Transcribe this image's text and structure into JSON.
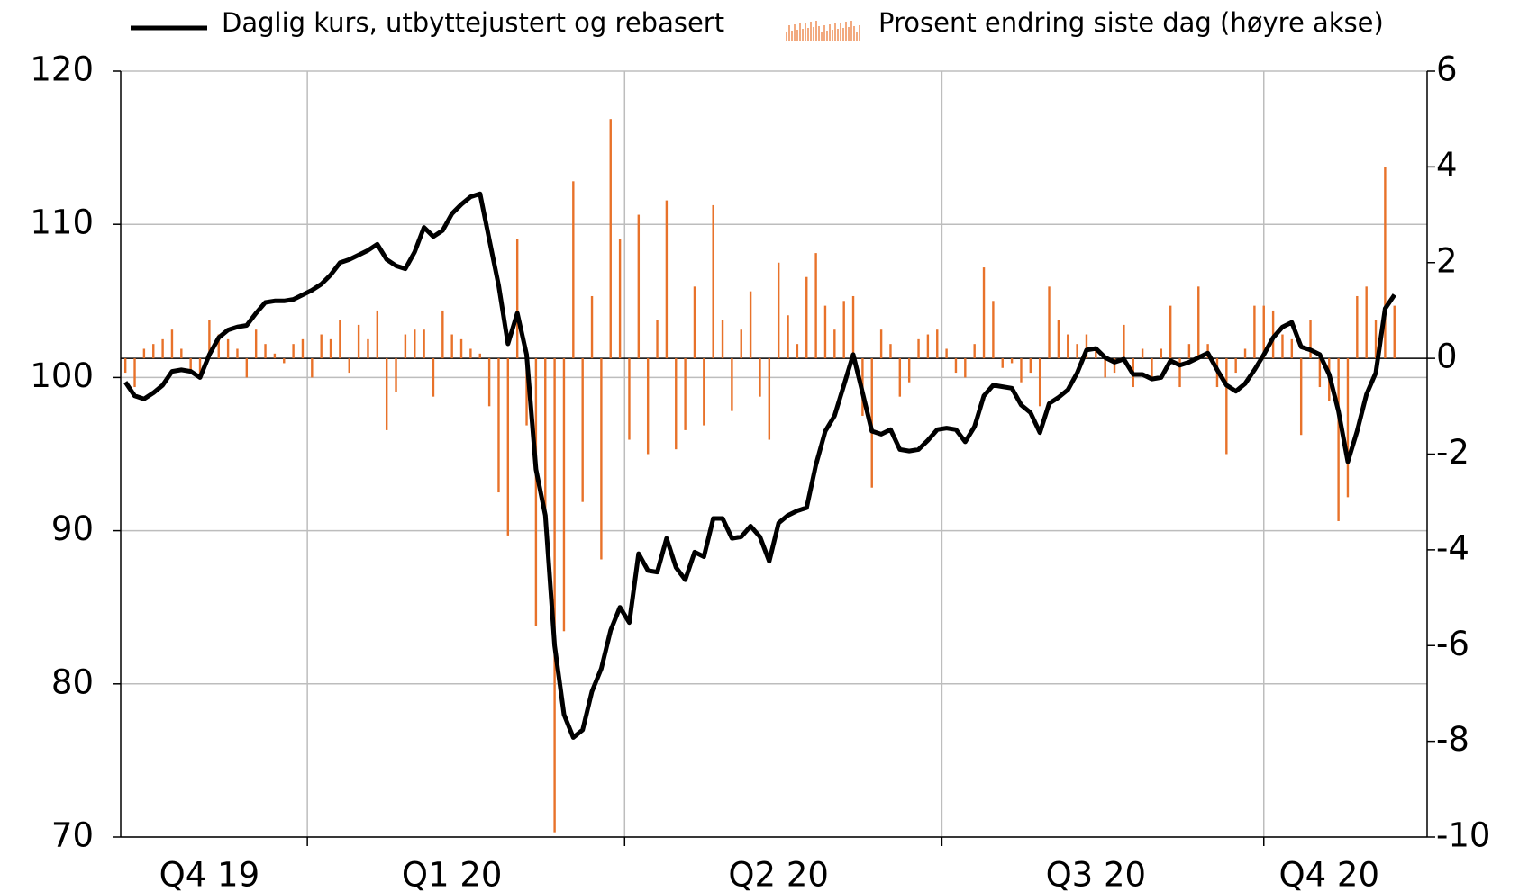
{
  "chart_data": {
    "type": "line-bar",
    "categories": [
      null,
      null,
      null,
      null,
      null,
      null,
      null,
      null,
      null,
      "Q4 19",
      null,
      null,
      null,
      null,
      null,
      null,
      null,
      null,
      null,
      null,
      null,
      null,
      null,
      null,
      null,
      null,
      null,
      null,
      null,
      null,
      null,
      null,
      null,
      null,
      null,
      "Q1 20",
      null,
      null,
      null,
      null,
      null,
      null,
      null,
      null,
      null,
      null,
      null,
      null,
      null,
      null,
      null,
      null,
      null,
      null,
      null,
      null,
      null,
      null,
      null,
      null,
      null,
      null,
      null,
      null,
      null,
      null,
      null,
      null,
      null,
      null,
      "Q2 20",
      null,
      null,
      null,
      null,
      null,
      null,
      null,
      null,
      null,
      null,
      null,
      null,
      null,
      null,
      null,
      null,
      null,
      null,
      null,
      null,
      null,
      null,
      null,
      null,
      null,
      null,
      null,
      null,
      null,
      null,
      null,
      null,
      null,
      "Q3 20",
      null,
      null,
      null,
      null,
      null,
      null,
      null,
      null,
      null,
      null,
      null,
      null,
      null,
      null,
      null,
      null,
      null,
      null,
      null,
      null,
      null,
      null,
      null,
      null,
      "Q4 20",
      null,
      null,
      null,
      null,
      null,
      null,
      null
    ],
    "xlim": [
      -0.5,
      139.5
    ],
    "xticks": [
      19.5,
      53.5,
      87.5,
      122
    ],
    "series": [
      {
        "name": "Daglig kurs, utbyttejustert og rebasert",
        "color": "#000000",
        "axis": "y",
        "values": [
          99.7,
          98.8,
          98.6,
          99.0,
          99.5,
          100.4,
          100.5,
          100.4,
          100.0,
          101.5,
          102.6,
          103.1,
          103.3,
          103.4,
          104.2,
          104.9,
          105.0,
          105.0,
          105.1,
          105.4,
          105.7,
          106.1,
          106.7,
          107.5,
          107.7,
          108.0,
          108.3,
          108.7,
          107.7,
          107.3,
          107.1,
          108.2,
          109.8,
          109.2,
          109.6,
          110.7,
          111.3,
          111.8,
          112.0,
          109.0,
          106.0,
          102.2,
          104.2,
          101.5,
          94.0,
          91.0,
          82.5,
          78.0,
          76.5,
          77.0,
          79.5,
          81.0,
          83.5,
          85.0,
          84.0,
          88.5,
          87.4,
          87.3,
          89.5,
          87.6,
          86.8,
          88.6,
          88.3,
          90.8,
          90.8,
          89.5,
          89.6,
          90.3,
          89.6,
          88.0,
          90.5,
          91.0,
          91.3,
          91.5,
          94.3,
          96.5,
          97.5,
          99.5,
          101.5,
          99.0,
          96.5,
          96.3,
          96.6,
          95.3,
          95.2,
          95.3,
          95.9,
          96.6,
          96.7,
          96.6,
          95.8,
          96.8,
          98.8,
          99.5,
          99.4,
          99.3,
          98.2,
          97.7,
          96.4,
          98.3,
          98.7,
          99.2,
          100.3,
          101.8,
          101.9,
          101.3,
          101.0,
          101.2,
          100.2,
          100.2,
          99.9,
          100.0,
          101.1,
          100.8,
          101.0,
          101.3,
          101.6,
          100.5,
          99.5,
          99.1,
          99.6,
          100.5,
          101.5,
          102.6,
          103.3,
          103.6,
          102.0,
          101.8,
          101.5,
          100.2,
          97.8,
          94.5,
          96.5,
          98.9,
          100.3,
          104.5,
          105.4
        ]
      },
      {
        "name": "Prosent endring siste dag (høyre akse)",
        "color": "#e8722a",
        "axis": "y2",
        "values": [
          -0.3,
          -0.6,
          0.2,
          0.3,
          0.4,
          0.6,
          0.2,
          -0.3,
          -0.4,
          0.8,
          0.5,
          0.4,
          0.2,
          -0.4,
          0.6,
          0.3,
          0.1,
          -0.1,
          0.3,
          0.4,
          -0.4,
          0.5,
          0.4,
          0.8,
          -0.3,
          0.7,
          0.4,
          1.0,
          -1.5,
          -0.7,
          0.5,
          0.6,
          0.6,
          -0.8,
          1.0,
          0.5,
          0.4,
          0.2,
          0.1,
          -1.0,
          -2.8,
          -3.7,
          2.5,
          -1.4,
          -5.6,
          -3.6,
          -9.9,
          -5.7,
          3.7,
          -3.0,
          1.3,
          -4.2,
          5.0,
          2.5,
          -1.7,
          3.0,
          -2.0,
          0.8,
          3.3,
          -1.9,
          -1.5,
          1.5,
          -1.4,
          3.2,
          0.8,
          -1.1,
          0.6,
          1.4,
          -0.8,
          -1.7,
          2.0,
          0.9,
          0.3,
          1.7,
          2.2,
          1.1,
          0.6,
          1.2,
          1.3,
          -1.2,
          -2.7,
          0.6,
          0.3,
          -0.8,
          -0.5,
          0.4,
          0.5,
          0.6,
          0.2,
          -0.3,
          -0.4,
          0.3,
          1.9,
          1.2,
          -0.2,
          -0.1,
          -0.5,
          -0.3,
          -1.0,
          1.5,
          0.8,
          0.5,
          0.3,
          0.5,
          0.2,
          -0.4,
          -0.3,
          0.7,
          -0.6,
          0.2,
          -0.4,
          0.2,
          1.1,
          -0.6,
          0.3,
          1.5,
          0.3,
          -0.6,
          -2.0,
          -0.3,
          0.2,
          1.1,
          1.1,
          1.0,
          0.5,
          0.4,
          -1.6,
          0.8,
          -0.6,
          -0.9,
          -3.4,
          -2.9,
          1.3,
          1.5,
          0.8,
          4.0,
          1.1
        ]
      }
    ],
    "ylim": [
      70,
      120
    ],
    "yticks": [
      70,
      80,
      90,
      100,
      110,
      120
    ],
    "y2lim": [
      -10,
      6
    ],
    "y2ticks": [
      -10,
      -8,
      -6,
      -4,
      -2,
      0,
      2,
      4,
      6
    ],
    "grid": true,
    "legend": "top"
  }
}
